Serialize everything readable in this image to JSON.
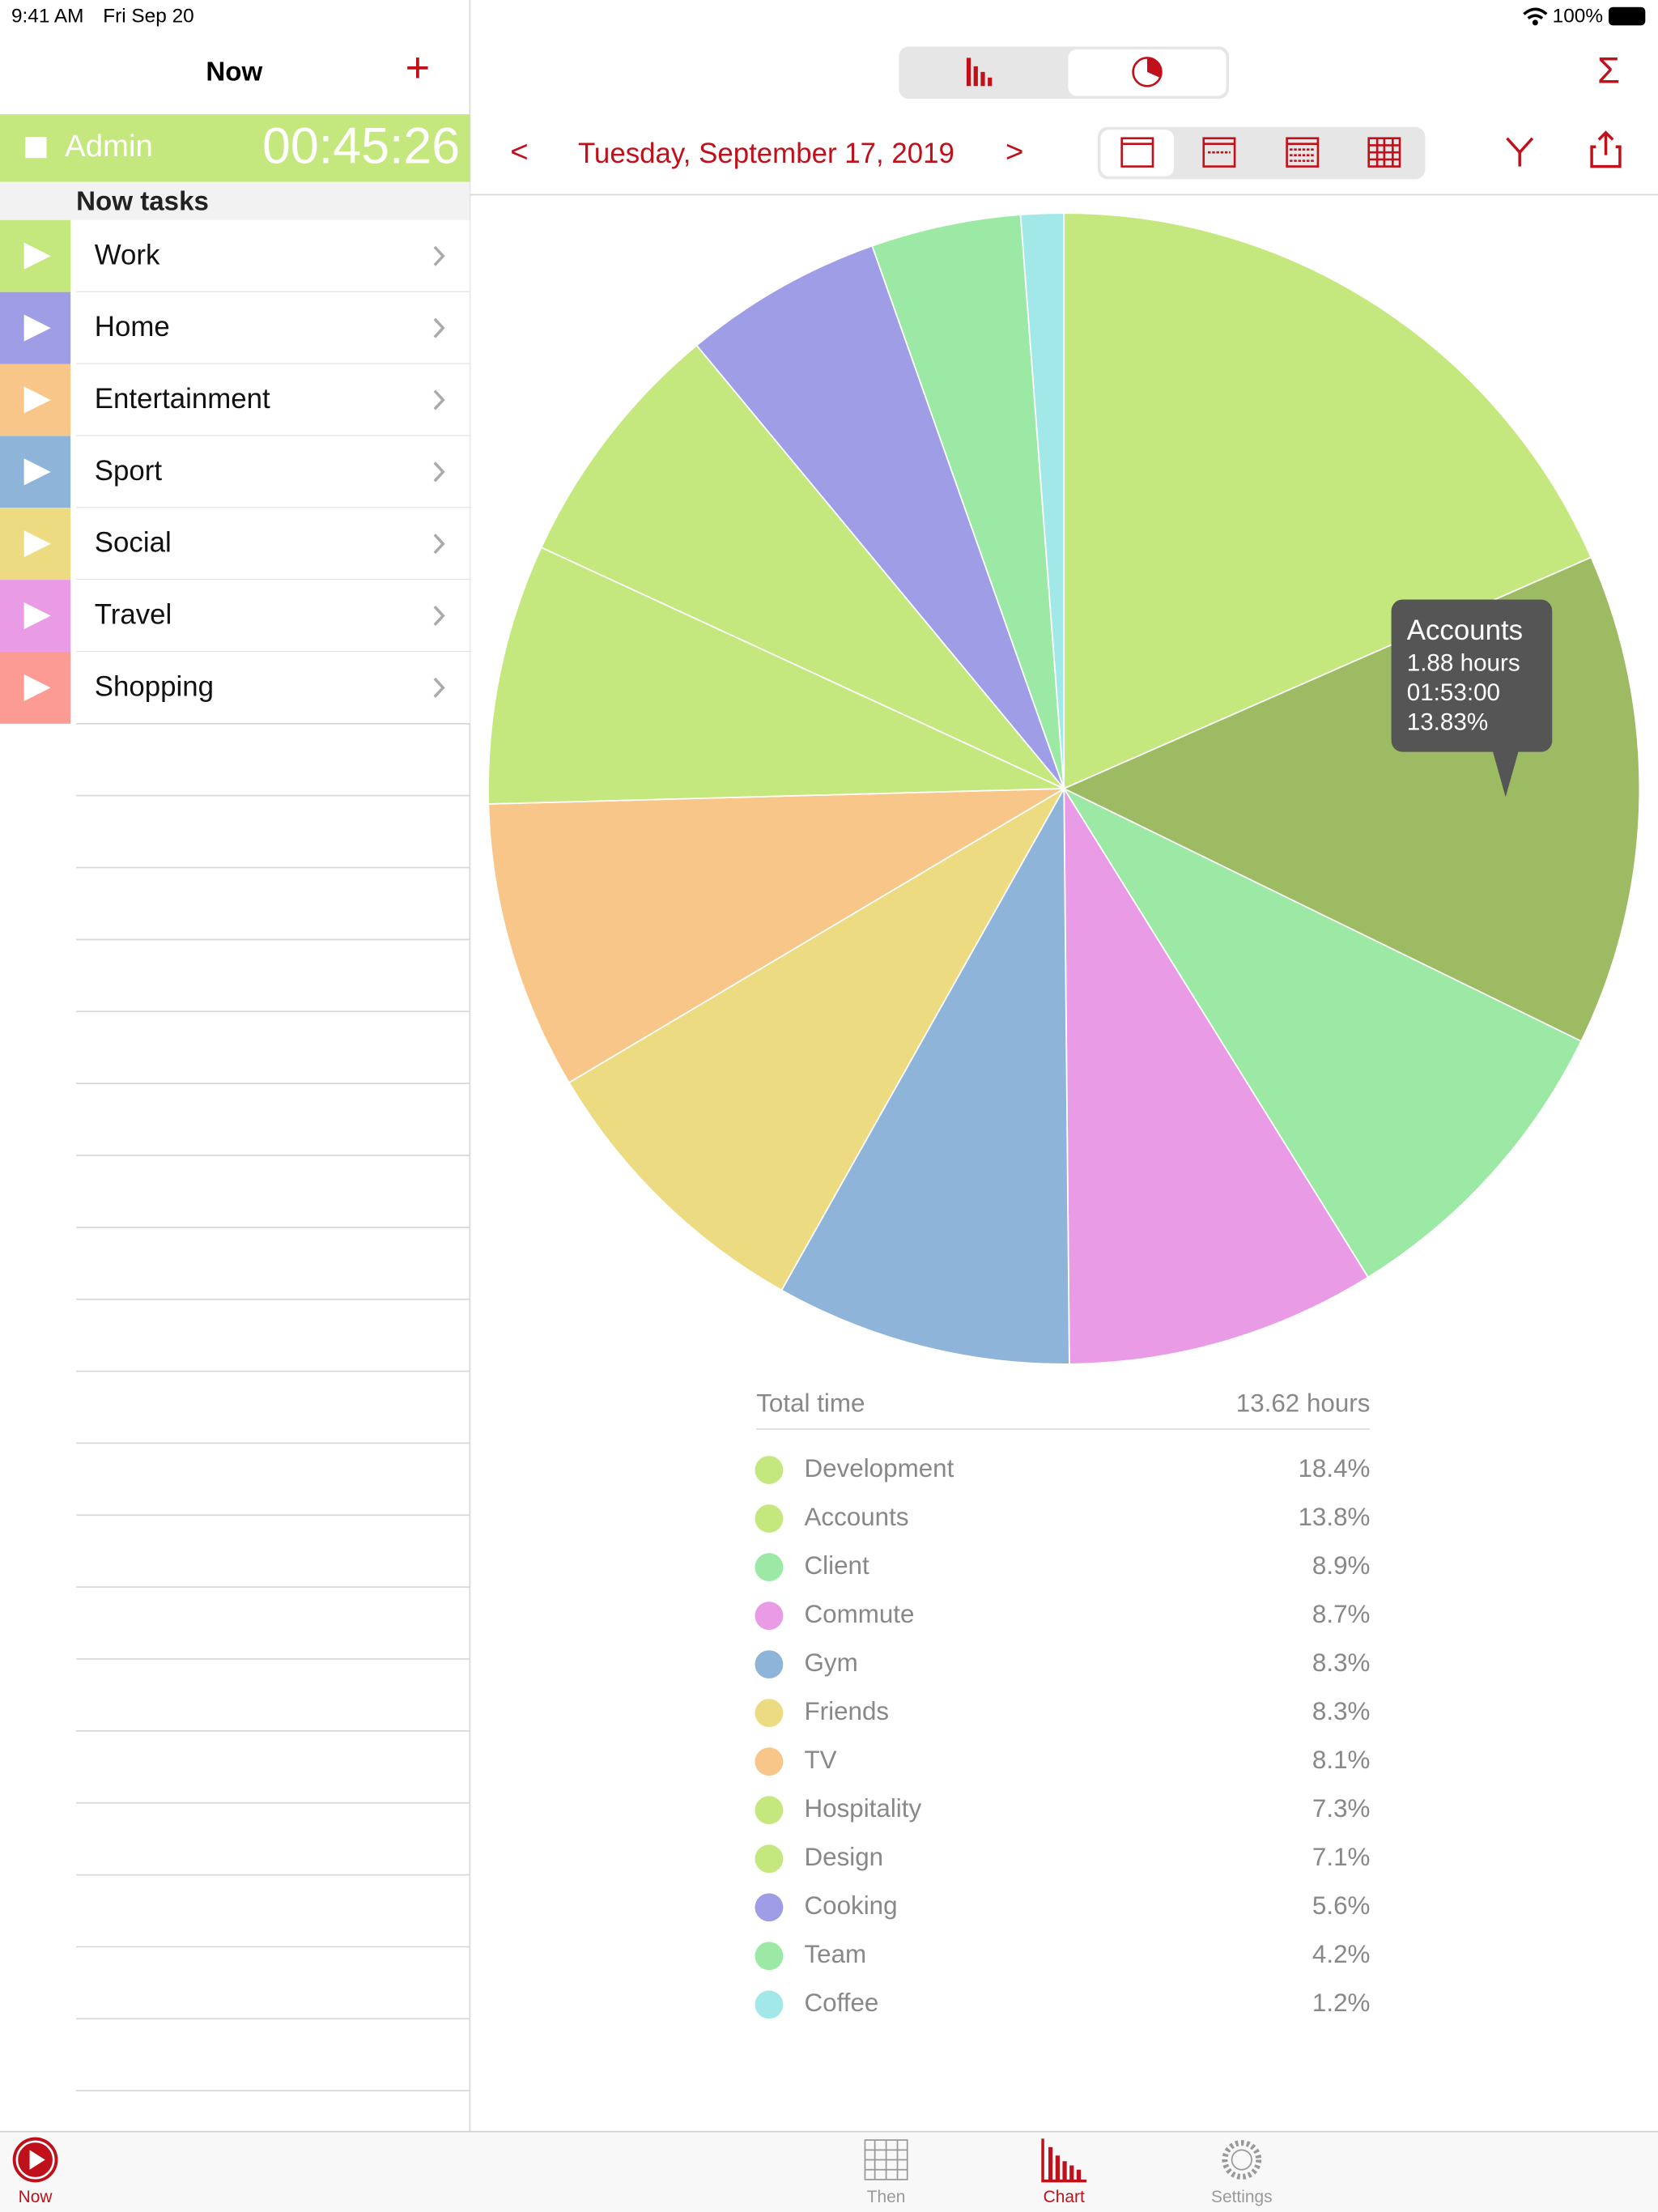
{
  "status_bar": {
    "time": "9:41 AM",
    "date": "Fri Sep 20",
    "battery": "100%"
  },
  "sidebar": {
    "title": "Now",
    "add": "+",
    "active_task": "Admin",
    "timer": "00:45:26",
    "active_color": "#c5e87e",
    "section": "Now tasks",
    "tasks": [
      {
        "name": "Work",
        "color": "#c5e87e"
      },
      {
        "name": "Home",
        "color": "#9e9de6"
      },
      {
        "name": "Entertainment",
        "color": "#f9c68a"
      },
      {
        "name": "Sport",
        "color": "#8fb4d9"
      },
      {
        "name": "Social",
        "color": "#ecdb81"
      },
      {
        "name": "Travel",
        "color": "#e99be6"
      },
      {
        "name": "Shopping",
        "color": "#fc9b93"
      }
    ]
  },
  "toolbar": {
    "prev": "<",
    "date": "Tuesday, September 17, 2019",
    "next": ">",
    "sum": "Σ"
  },
  "chart_data": {
    "type": "pie",
    "categories": [
      "Development",
      "Accounts",
      "Client",
      "Commute",
      "Gym",
      "Friends",
      "TV",
      "Hospitality",
      "Design",
      "Cooking",
      "Team",
      "Coffee"
    ],
    "values": [
      18.4,
      13.8,
      8.9,
      8.7,
      8.3,
      8.3,
      8.1,
      7.3,
      7.1,
      5.6,
      4.2,
      1.2
    ],
    "value_labels": [
      "18.4%",
      "13.8%",
      "8.9%",
      "8.7%",
      "8.3%",
      "8.3%",
      "8.1%",
      "7.3%",
      "7.1%",
      "5.6%",
      "4.2%",
      "1.2%"
    ],
    "colors": [
      "#c5e87e",
      "#c5e87e",
      "#9be9a4",
      "#e99be6",
      "#8fb4d9",
      "#ecdb81",
      "#f9c68a",
      "#c5e87e",
      "#c5e87e",
      "#9e9de6",
      "#9be9a4",
      "#a3e8e8"
    ],
    "highlight_color": "#9dbb63",
    "tooltip": {
      "title": "Accounts",
      "lines": [
        "1.88 hours",
        "01:53:00",
        "13.83%"
      ]
    },
    "total_label": "Total time",
    "total_value": "13.62 hours"
  },
  "tab_bar": [
    "Now",
    "Then",
    "Chart",
    "Settings"
  ]
}
